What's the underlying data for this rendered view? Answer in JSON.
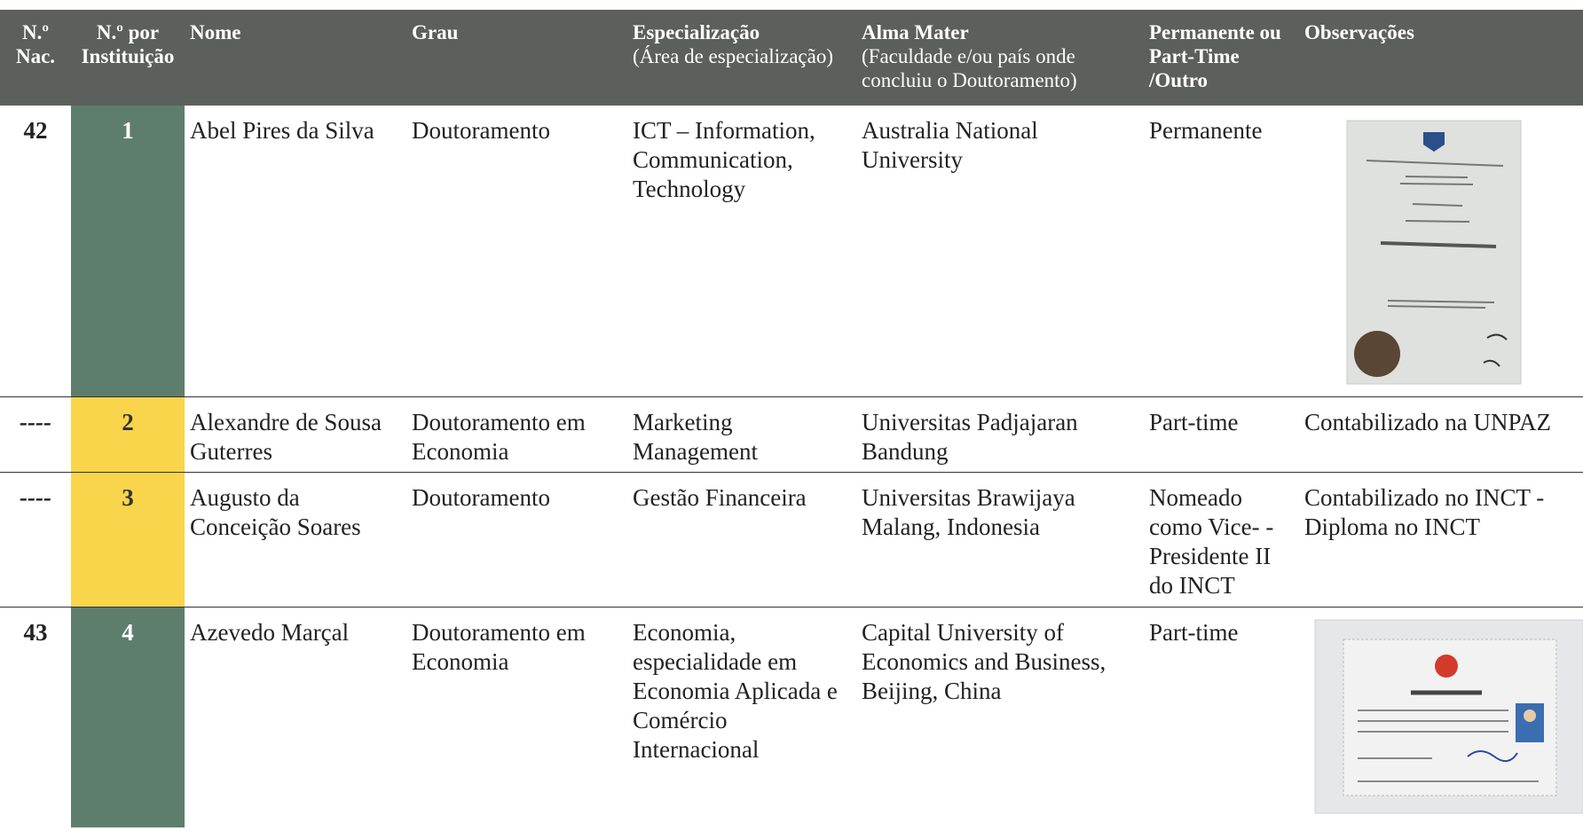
{
  "table": {
    "header": [
      {
        "title": "N.º Nac."
      },
      {
        "title": "N.º por Instituição"
      },
      {
        "title": "Nome"
      },
      {
        "title": "Grau"
      },
      {
        "title": "Especialização",
        "subtitle": "(Área de especialização)"
      },
      {
        "title": "Alma Mater",
        "subtitle": "(Faculdade e/ou país onde concluiu o Doutoramento)"
      },
      {
        "title": "Permanente ou Part-Time /Outro"
      },
      {
        "title": "Observações"
      }
    ],
    "rows": [
      {
        "nac": "42",
        "inst": "1",
        "nome": "Abel Pires da Silva",
        "grau": "Doutoramento",
        "especializacao": "ICT – Information, Communication, Technology",
        "alma_mater": "Australia National University",
        "estatuto": "Permanente"
      },
      {
        "nac": "----",
        "inst": "2",
        "nome": "Alexandre de Sousa Guterres",
        "grau": "Doutoramento em Economia",
        "especializacao": "Marketing Management",
        "alma_mater": "Universitas Padjajaran Bandung",
        "estatuto": "Part-time",
        "observacoes": "Contabilizado na UNPAZ"
      },
      {
        "nac": "----",
        "inst": "3",
        "nome": "Augusto da Conceição Soares",
        "grau": "Doutoramento",
        "especializacao": "Gestão Financeira",
        "alma_mater": "Universitas Brawijaya Malang, Indonesia",
        "estatuto": "Nomeado como Vice- -Presidente II do INCT",
        "observacoes": "Contabilizado no INCT - Diploma no INCT"
      },
      {
        "nac": "43",
        "inst": "4",
        "nome": "Azevedo Marçal",
        "grau": "Doutoramento em Economia",
        "especializacao": "Economia, especialidade em Economia Aplicada e Comércio Internacional",
        "alma_mater": "Capital University of Economics and Business, Beijing, China",
        "estatuto": "Part-time"
      }
    ]
  }
}
